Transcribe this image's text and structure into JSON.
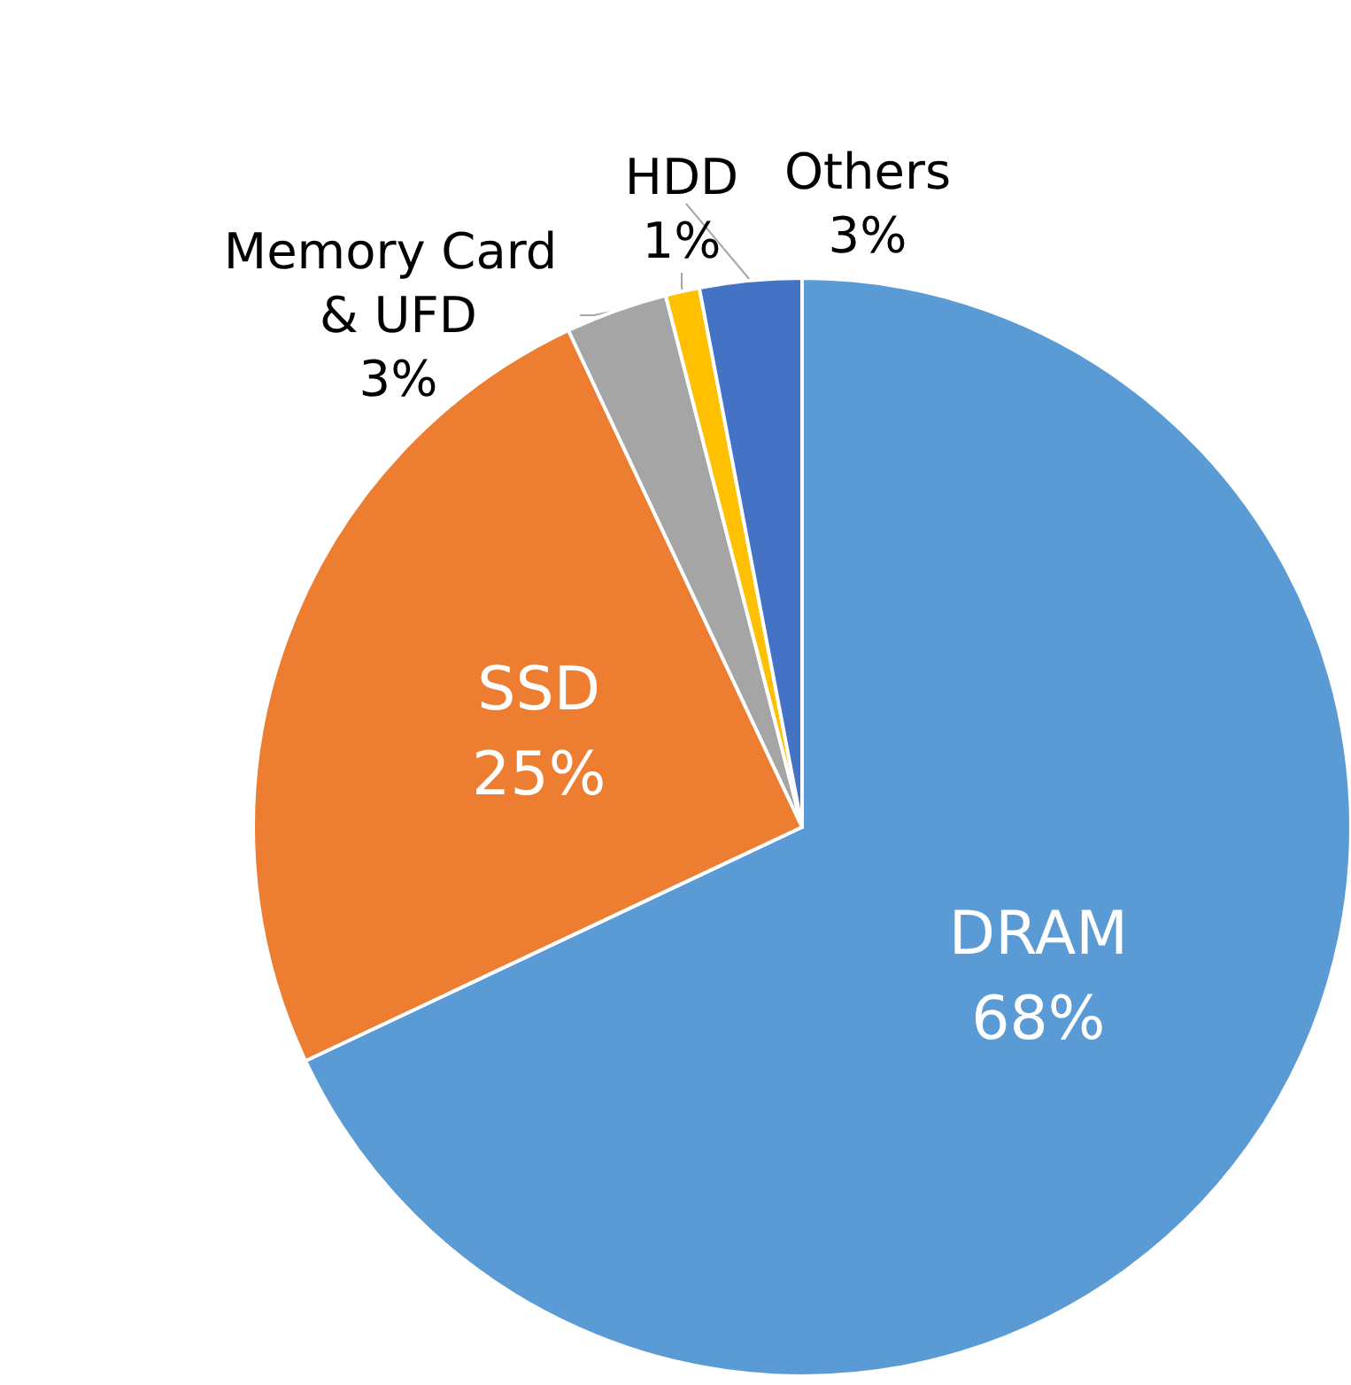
{
  "chart_data": {
    "type": "pie",
    "categories": [
      "DRAM",
      "SSD",
      "Memory Card & UFD",
      "HDD",
      "Others"
    ],
    "values": [
      68,
      25,
      3,
      1,
      3
    ],
    "value_labels": [
      "68%",
      "25%",
      "3%",
      "1%",
      "3%"
    ],
    "colors": [
      "#5b9bd5",
      "#ed7d31",
      "#a5a5a5",
      "#ffc000",
      "#4472c4"
    ],
    "legend": false
  }
}
